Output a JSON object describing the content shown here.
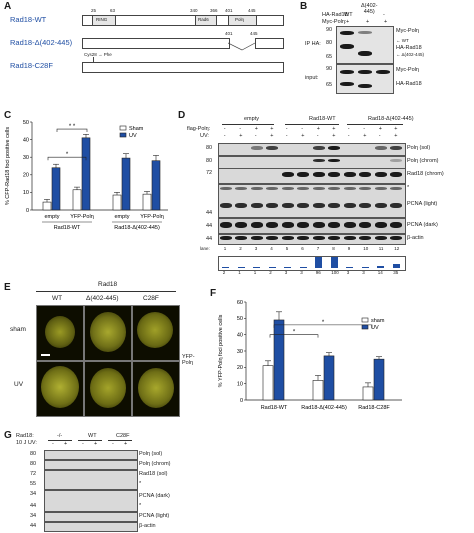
{
  "panelA": {
    "label": "A",
    "constructs": [
      {
        "name": "Rad18-WT",
        "positions": [
          "25",
          "63",
          "340",
          "366",
          "401",
          "445"
        ],
        "domains": [
          "RING",
          "Rad6",
          "Polη"
        ]
      },
      {
        "name": "Rad18-Δ(402-445)",
        "positions": [
          "401",
          "445"
        ]
      },
      {
        "name": "Rad18-C28F",
        "mutation": "Cys28 → Phe"
      }
    ]
  },
  "panelB": {
    "label": "B",
    "header_rows": [
      "HA-Rad18:",
      "Myc-Polη:"
    ],
    "lanes": [
      "WT",
      "Δ(402-\n445)",
      "-"
    ],
    "myc": [
      "+",
      "+",
      "+"
    ],
    "sections": [
      "IP HA:",
      "input:"
    ],
    "markers": [
      "90",
      "80",
      "65",
      "90",
      "65"
    ],
    "bands": [
      "Myc-Polη",
      "HA-Rad18",
      "← WT",
      "← Δ(402-445)",
      "Myc-Polη",
      "HA-Rad18"
    ]
  },
  "panelC": {
    "label": "C",
    "chart_data": {
      "type": "bar",
      "ylabel": "% CFP-Rad18 foci positive cells",
      "ylim": [
        0,
        50
      ],
      "yticks": [
        "0",
        "10",
        "20",
        "30",
        "40",
        "50"
      ],
      "categories": [
        "empty",
        "YFP-Polη",
        "empty",
        "YFP-Polη"
      ],
      "groups": [
        "Rad18-WT",
        "Rad18-Δ(402-445)"
      ],
      "series": [
        {
          "name": "Sham",
          "values": [
            4.5,
            11.5,
            8.5,
            9
          ],
          "errors": [
            1.5,
            1.5,
            1.5,
            1.5
          ],
          "color": "#ffffff"
        },
        {
          "name": "UV",
          "values": [
            24,
            41,
            29.5,
            28
          ],
          "errors": [
            2,
            2,
            2.5,
            3
          ],
          "color": "#1f4ea3"
        }
      ],
      "significance": [
        "*",
        "* *"
      ]
    }
  },
  "panelD": {
    "label": "D",
    "groups": [
      "empty",
      "Rad18-WT",
      "Rad18-Δ(402-445)"
    ],
    "rows": [
      "flag-Polη:",
      "UV:"
    ],
    "flag": [
      "-",
      "-",
      "+",
      "+",
      "-",
      "-",
      "+",
      "+",
      "-",
      "-",
      "+",
      "+"
    ],
    "uv": [
      "-",
      "+",
      "-",
      "+",
      "-",
      "+",
      "-",
      "+",
      "-",
      "+",
      "-",
      "+"
    ],
    "lane_label": "lane:",
    "lanes": [
      "1",
      "2",
      "3",
      "4",
      "5",
      "6",
      "7",
      "8",
      "9",
      "10",
      "11",
      "12"
    ],
    "markers": [
      "80",
      "80",
      "72",
      "44",
      "44",
      "44"
    ],
    "bands": [
      "Polη (sol)",
      "Polη (chrom)",
      "Rad18 (chrom)",
      "*",
      "PCNA (light)",
      "PCNA (dark)",
      "β-actin"
    ],
    "quant": [
      "2",
      "1",
      "1",
      "2",
      "3",
      "3",
      "96",
      "100",
      "3",
      "3",
      "14",
      "35"
    ],
    "quant_values": [
      2,
      1,
      1,
      2,
      3,
      3,
      96,
      100,
      3,
      3,
      14,
      35
    ]
  },
  "panelE": {
    "label": "E",
    "header": "Rad18",
    "columns": [
      "WT",
      "Δ(402-445)",
      "C28F"
    ],
    "rows": [
      "sham",
      "UV"
    ],
    "side": "YFP-\nPolη"
  },
  "panelF": {
    "label": "F",
    "chart_data": {
      "type": "bar",
      "ylabel": "% YFP-Polη foci positive cells",
      "ylim": [
        0,
        60
      ],
      "yticks": [
        "0",
        "10",
        "20",
        "30",
        "40",
        "50",
        "60"
      ],
      "categories": [
        "Rad18-WT",
        "Rad18-Δ(402-445)",
        "Rad18-C28F"
      ],
      "series": [
        {
          "name": "sham",
          "values": [
            21,
            12,
            8
          ],
          "errors": [
            3,
            3,
            2.5
          ],
          "color": "#ffffff"
        },
        {
          "name": "UV",
          "values": [
            49,
            27,
            25
          ],
          "errors": [
            5,
            2,
            1.5
          ],
          "color": "#1f4ea3"
        }
      ],
      "significance": [
        "*",
        "*"
      ]
    }
  },
  "panelG": {
    "label": "G",
    "rows": [
      "Rad18:",
      "10 J UV:"
    ],
    "groups": [
      "-/-",
      "WT",
      "C28F"
    ],
    "uv": [
      "-",
      "+",
      "-",
      "+",
      "-",
      "+"
    ],
    "markers": [
      "80",
      "80",
      "72",
      "55",
      "34",
      "44",
      "34",
      "44"
    ],
    "bands": [
      "Polη (sol)",
      "Polη (chrom)",
      "Rad18 (sol)",
      "*",
      "PCNA (dark)",
      "*",
      "PCNA (light)",
      "β-actin"
    ]
  }
}
